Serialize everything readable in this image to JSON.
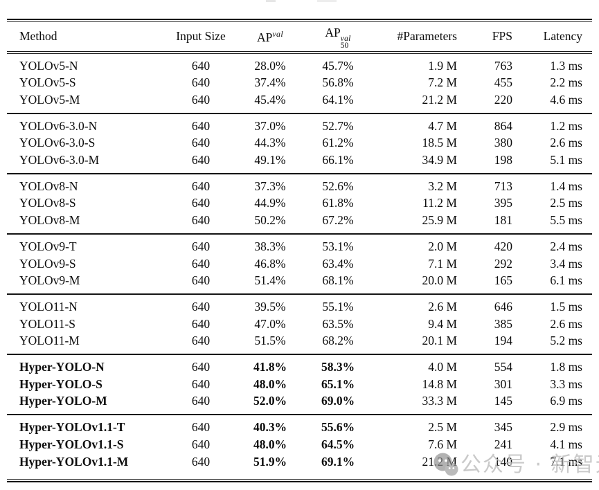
{
  "table": {
    "columns": [
      {
        "key": "method",
        "label": "Method"
      },
      {
        "key": "input-size",
        "label": "Input Size"
      },
      {
        "key": "ap-val",
        "label": "AP",
        "sup": "val"
      },
      {
        "key": "ap50-val",
        "label": "AP",
        "sup": "val",
        "sub": "50"
      },
      {
        "key": "parameters",
        "label": "#Parameters"
      },
      {
        "key": "fps",
        "label": "FPS"
      },
      {
        "key": "latency",
        "label": "Latency"
      }
    ],
    "groups": [
      {
        "bold": false,
        "rows": [
          [
            "YOLOv5-N",
            "640",
            "28.0%",
            "45.7%",
            "1.9 M",
            "763",
            "1.3 ms"
          ],
          [
            "YOLOv5-S",
            "640",
            "37.4%",
            "56.8%",
            "7.2 M",
            "455",
            "2.2 ms"
          ],
          [
            "YOLOv5-M",
            "640",
            "45.4%",
            "64.1%",
            "21.2 M",
            "220",
            "4.6 ms"
          ]
        ]
      },
      {
        "bold": false,
        "rows": [
          [
            "YOLOv6-3.0-N",
            "640",
            "37.0%",
            "52.7%",
            "4.7 M",
            "864",
            "1.2 ms"
          ],
          [
            "YOLOv6-3.0-S",
            "640",
            "44.3%",
            "61.2%",
            "18.5 M",
            "380",
            "2.6 ms"
          ],
          [
            "YOLOv6-3.0-M",
            "640",
            "49.1%",
            "66.1%",
            "34.9 M",
            "198",
            "5.1 ms"
          ]
        ]
      },
      {
        "bold": false,
        "rows": [
          [
            "YOLOv8-N",
            "640",
            "37.3%",
            "52.6%",
            "3.2 M",
            "713",
            "1.4 ms"
          ],
          [
            "YOLOv8-S",
            "640",
            "44.9%",
            "61.8%",
            "11.2 M",
            "395",
            "2.5 ms"
          ],
          [
            "YOLOv8-M",
            "640",
            "50.2%",
            "67.2%",
            "25.9 M",
            "181",
            "5.5 ms"
          ]
        ]
      },
      {
        "bold": false,
        "rows": [
          [
            "YOLOv9-T",
            "640",
            "38.3%",
            "53.1%",
            "2.0 M",
            "420",
            "2.4 ms"
          ],
          [
            "YOLOv9-S",
            "640",
            "46.8%",
            "63.4%",
            "7.1 M",
            "292",
            "3.4 ms"
          ],
          [
            "YOLOv9-M",
            "640",
            "51.4%",
            "68.1%",
            "20.0 M",
            "165",
            "6.1 ms"
          ]
        ]
      },
      {
        "bold": false,
        "rows": [
          [
            "YOLO11-N",
            "640",
            "39.5%",
            "55.1%",
            "2.6 M",
            "646",
            "1.5 ms"
          ],
          [
            "YOLO11-S",
            "640",
            "47.0%",
            "63.5%",
            "9.4 M",
            "385",
            "2.6 ms"
          ],
          [
            "YOLO11-M",
            "640",
            "51.5%",
            "68.2%",
            "20.1 M",
            "194",
            "5.2 ms"
          ]
        ]
      },
      {
        "bold": true,
        "rows": [
          [
            "Hyper-YOLO-N",
            "640",
            "41.8%",
            "58.3%",
            "4.0 M",
            "554",
            "1.8 ms"
          ],
          [
            "Hyper-YOLO-S",
            "640",
            "48.0%",
            "65.1%",
            "14.8 M",
            "301",
            "3.3 ms"
          ],
          [
            "Hyper-YOLO-M",
            "640",
            "52.0%",
            "69.0%",
            "33.3 M",
            "145",
            "6.9 ms"
          ]
        ]
      },
      {
        "bold": true,
        "rows": [
          [
            "Hyper-YOLOv1.1-T",
            "640",
            "40.3%",
            "55.6%",
            "2.5 M",
            "345",
            "2.9 ms"
          ],
          [
            "Hyper-YOLOv1.1-S",
            "640",
            "48.0%",
            "64.5%",
            "7.6 M",
            "241",
            "4.1 ms"
          ],
          [
            "Hyper-YOLOv1.1-M",
            "640",
            "51.9%",
            "69.1%",
            "21.2 M",
            "140",
            "7.1 ms"
          ]
        ]
      }
    ]
  },
  "watermark": {
    "icon": "wechat-icon",
    "text": "公众号 · 新智元",
    "text_color": "#bcbcbc",
    "icon_color": "#979797"
  }
}
